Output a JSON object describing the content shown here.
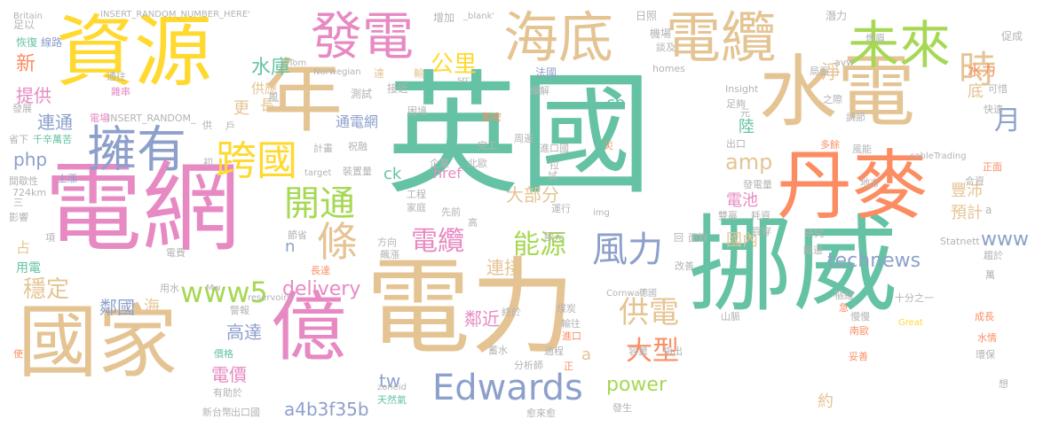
{
  "palette": {
    "teal": "#66c2a5",
    "orange": "#fc8d62",
    "blue": "#8da0cb",
    "pink": "#e78ac3",
    "green": "#a6d854",
    "yellow": "#ffd92f",
    "tan": "#e5c494",
    "gray": "#b3b3b3"
  },
  "words": {
    "w001": "英國",
    "w002": "挪威",
    "w003": "電力",
    "w004": "電網",
    "w005": "資源",
    "w006": "水電",
    "w007": "丹麥",
    "w008": "年",
    "w009": "國家",
    "w010": "億",
    "w011": "海底",
    "w012": "電纜",
    "w013": "發電",
    "w014": "未來",
    "w015": "擁有",
    "w016": "跨國",
    "w017": "時",
    "w018": "條",
    "w019": "開通",
    "w020": "風力",
    "w021": "Edwards",
    "w022": "www5",
    "w023": "供電",
    "w024": "大型",
    "w025": "電纜",
    "w026": "能源",
    "w027": "公里",
    "w028": "水庫",
    "w029": "鄰國",
    "w030": "穩定",
    "w031": "delivery",
    "w032": "technews",
    "w033": "月",
    "w034": "amp",
    "w035": "www",
    "w036": "tw",
    "w037": "power",
    "w038": "a4b3f35b",
    "w039": "鄰近",
    "w040": "電價",
    "w041": "高達",
    "w042": "連接",
    "w043": "大部分",
    "w044": "預計",
    "w045": "豐沛",
    "w046": "電池",
    "w047": "國內",
    "w048": "陸",
    "w049": "href",
    "w050": "ck",
    "w051": "cb",
    "w052": "php",
    "w053": "連通",
    "w054": "提供",
    "w055": "新",
    "w056": "更",
    "w057": "長",
    "w058": "供應",
    "w059": "通電網",
    "w060": "淨",
    "w061": "底",
    "w062": "水力",
    "w063": "約",
    "w064": "a",
    "w065": "n",
    "w066": "占",
    "w067": "用電",
    "w068": "海",
    "w069": "Britain",
    "w070": "INSERT_RANDOM_NUMBER_HERE'",
    "w071": "增加",
    "w072": "_blank'",
    "w073": "日照",
    "w074": "潛力",
    "w075": "足以",
    "w076": "恢復",
    "w077": "線路",
    "w078": "通往",
    "w079": "雜串",
    "w080": "發展",
    "w081": "Tom",
    "w082": "Norwegian",
    "w083": "達",
    "w084": "輸",
    "w085": "法國",
    "w086": "接近",
    "w087": "src",
    "w088": "緩解",
    "w089": "測試",
    "w090": "風",
    "w091": "homes",
    "w092": "avw",
    "w093": "局面",
    "w094": "可惜",
    "w095": "促成",
    "w096": "燃眉",
    "w097": "機場",
    "w098": "談及",
    "w099": "Insight",
    "w100": "足夠",
    "w101": "之際",
    "w102": "調節",
    "w103": "快速",
    "w104": "元",
    "w105": "電場",
    "w106": "INSERT_RANDOM_",
    "w107": "戶",
    "w108": "供",
    "w109": "省下",
    "w110": "千辛萬苦",
    "w111": "初",
    "w112": "計畫",
    "w113": "祝融",
    "w114": "困境",
    "w115": "緊密",
    "w116": "完工",
    "w117": "周邊",
    "w118": "進口國",
    "w119": "出口",
    "w120": "風能",
    "w121": "cableTrading",
    "w122": "多餘",
    "w123": "上漲",
    "w124": "target",
    "w125": "裝置量",
    "w126": "企業",
    "w127": "北歐",
    "w128": "拉",
    "w129": "試",
    "w130": "災",
    "w131": "間歇性",
    "w132": "724km",
    "w133": "三",
    "w134": "工程",
    "w135": "家庭",
    "w136": "發電量",
    "w137": "地方",
    "w138": "合資",
    "w139": "雙贏",
    "w140": "耗資",
    "w141": "正面",
    "w142": "img",
    "w143": "影響",
    "w144": "項",
    "w145": "電費",
    "w146": "節省",
    "w147": "方向",
    "w148": "先前",
    "w149": "高",
    "w150": "運行",
    "w151": "歐元",
    "w152": "研究",
    "w153": "買穿",
    "w154": "Statnett",
    "w155": "趨於",
    "w156": "隧道",
    "w157": "長達",
    "w158": "飆漲",
    "w159": "回",
    "w160": "面對",
    "w161": "改善",
    "w162": "Cornwall",
    "w163": "德國",
    "w164": "樞紐",
    "w165": "Mw",
    "w166": "用水",
    "w167": "reservoirs",
    "w168": "十分之一",
    "w169": "山脈",
    "w170": "萬",
    "w171": "煤炭",
    "w172": "終於",
    "w173": "警報",
    "w174": "急",
    "w175": "慢慢",
    "w176": "成長",
    "w177": "南歐",
    "w178": "水情",
    "w179": "Great",
    "w180": "輸往",
    "w181": "進口",
    "w182": "容量",
    "w183": "指出",
    "w184": "妥善",
    "w185": "環保",
    "w186": "分析師",
    "w187": "過程",
    "w188": "正",
    "w189": "蓄水",
    "w190": "價格",
    "w191": "有助於",
    "w192": "天然氣",
    "w193": "新台幣",
    "w194": "出口國",
    "w195": "zoneid",
    "w196": "發生",
    "w197": "愈來愈",
    "w198": "使",
    "w199": "想",
    "w200": "a"
  }
}
